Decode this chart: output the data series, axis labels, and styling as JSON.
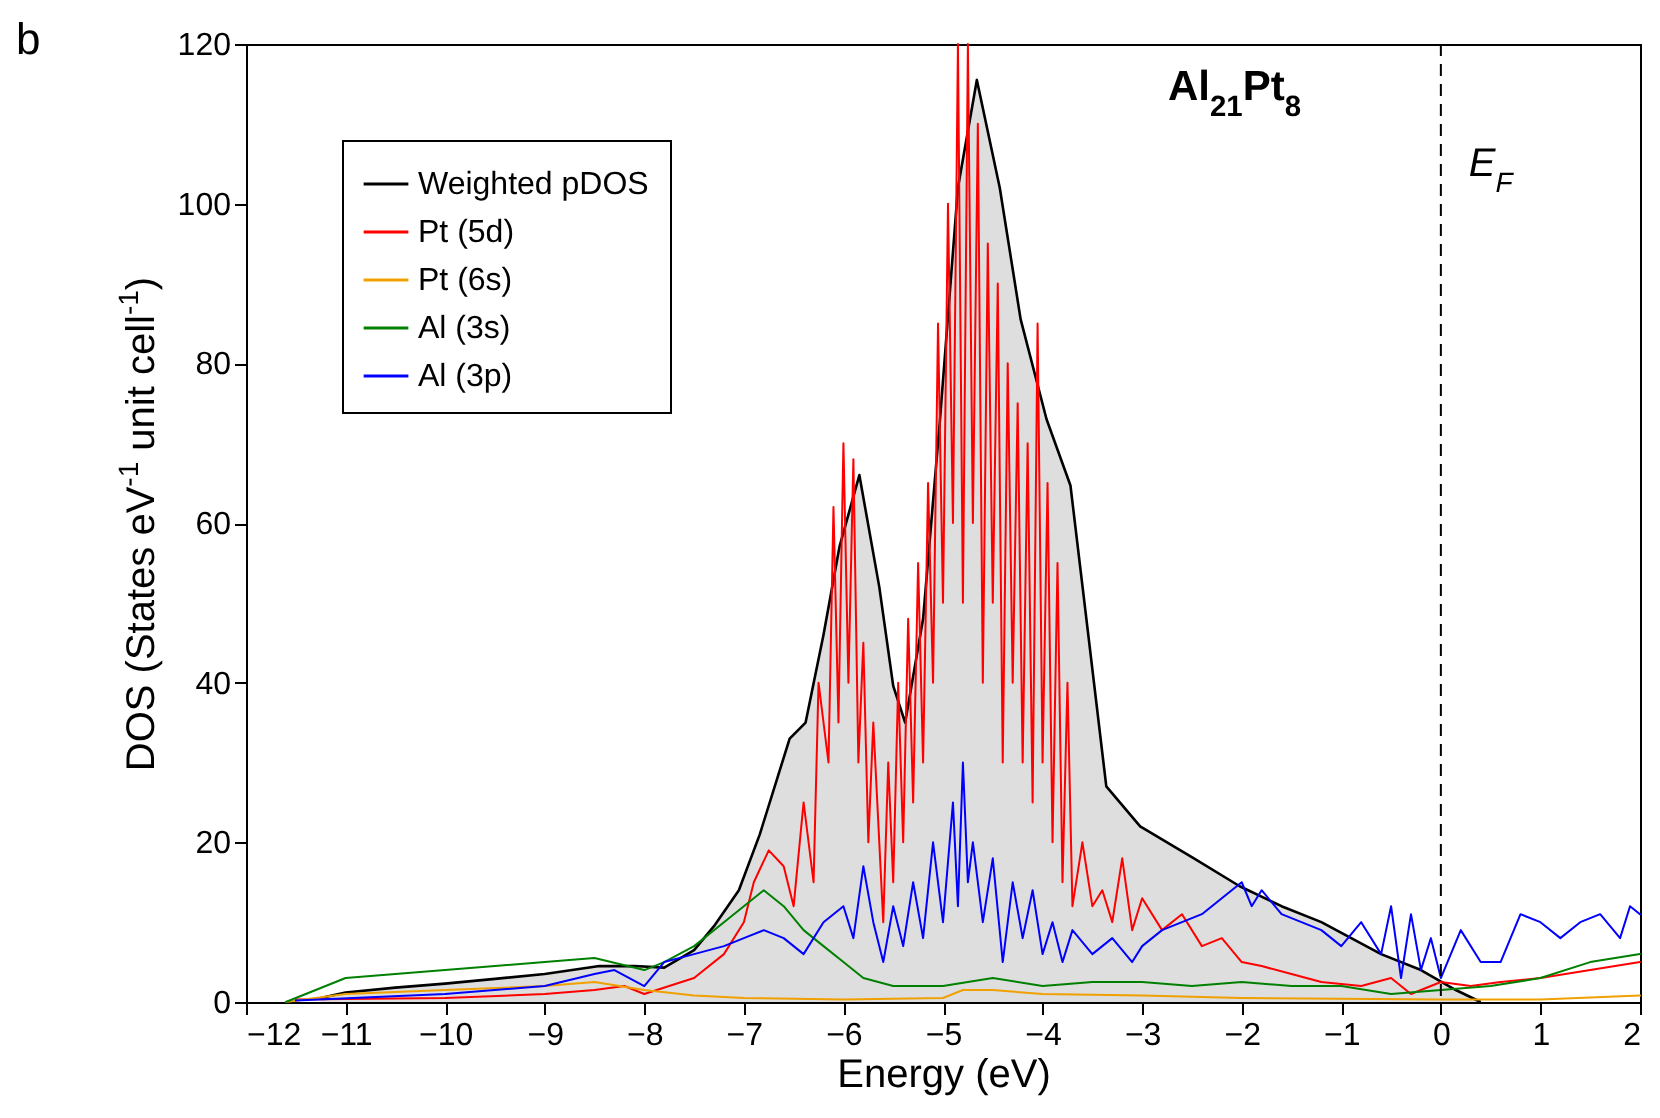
{
  "chart_data": {
    "type": "line",
    "title": "Al$_{21}$Pt$_{8}$",
    "xlabel": "Energy (eV)",
    "ylabel": "DOS (States eV$^{-1}$ unit cell$^{-1}$)",
    "annotations": [
      "b"
    ],
    "xlim": [
      -12,
      2
    ],
    "xticks": [
      -12,
      -11,
      -10,
      -9,
      -8,
      -7,
      -6,
      -5,
      -4,
      -3,
      -2,
      -1,
      0,
      1,
      2
    ],
    "ylim": [
      0,
      120
    ],
    "yticks": [
      0,
      20,
      40,
      60,
      80,
      100,
      120
    ],
    "grid": false,
    "legend": "top left",
    "marker": "none",
    "line_style": "solid",
    "ref_lines": [
      {
        "axis": "x",
        "value": 0,
        "label": "E$_{F}$",
        "line_style": "dashed",
        "color": "#000000"
      }
    ],
    "series": [
      {
        "name": "Weighted pDOS",
        "type": "area",
        "color": "#000000",
        "x": [
          -11.25,
          -11,
          -10.5,
          -10,
          -9.5,
          -9,
          -8.45,
          -8.1,
          -7.8,
          -7.5,
          -7.3,
          -7.05,
          -6.84,
          -6.54,
          -6.38,
          -6.2,
          -6.04,
          -5.84,
          -5.64,
          -5.5,
          -5.38,
          -5.2,
          -5.03,
          -4.85,
          -4.66,
          -4.43,
          -4.22,
          -3.96,
          -3.72,
          -3.56,
          -3.36,
          -3.02,
          -2.48,
          -2.02,
          -1.6,
          -1.2,
          -0.6,
          -0.2,
          0.15,
          0.4
        ],
        "values": [
          0.5,
          1.2,
          1.8,
          2.3,
          2.9,
          3.5,
          4.5,
          4.5,
          4.3,
          6.5,
          9.5,
          14,
          21,
          33,
          35,
          46,
          57,
          66,
          52,
          39.6,
          35,
          48,
          73,
          102,
          115.5,
          102,
          85.5,
          73,
          64.7,
          48,
          27,
          22,
          18,
          14.5,
          12,
          10,
          6,
          4,
          1.5,
          0
        ]
      },
      {
        "name": "Pt (5d)",
        "color": "#ff0000",
        "x": [
          -11.5,
          -10,
          -9,
          -8.5,
          -8.2,
          -8,
          -7.5,
          -7.2,
          -7,
          -6.9,
          -6.75,
          -6.6,
          -6.5,
          -6.4,
          -6.3,
          -6.25,
          -6.15,
          -6.1,
          -6.05,
          -6,
          -5.95,
          -5.9,
          -5.85,
          -5.8,
          -5.75,
          -5.7,
          -5.6,
          -5.55,
          -5.5,
          -5.45,
          -5.4,
          -5.35,
          -5.3,
          -5.25,
          -5.2,
          -5.15,
          -5.1,
          -5.05,
          -5,
          -4.95,
          -4.9,
          -4.85,
          -4.8,
          -4.75,
          -4.7,
          -4.65,
          -4.6,
          -4.55,
          -4.5,
          -4.45,
          -4.4,
          -4.35,
          -4.3,
          -4.25,
          -4.2,
          -4.15,
          -4.1,
          -4.05,
          -4,
          -3.95,
          -3.9,
          -3.85,
          -3.8,
          -3.75,
          -3.7,
          -3.6,
          -3.5,
          -3.4,
          -3.3,
          -3.2,
          -3.1,
          -3,
          -2.8,
          -2.6,
          -2.4,
          -2.2,
          -2,
          -1.8,
          -1.5,
          -1.2,
          -0.8,
          -0.5,
          -0.3,
          0,
          0.3,
          0.6,
          1,
          1.5,
          2
        ],
        "values": [
          0.3,
          0.5,
          1,
          1.5,
          2,
          1,
          3,
          6,
          10,
          15,
          19,
          17,
          12,
          25,
          15,
          40,
          30,
          62,
          35,
          70,
          40,
          68,
          30,
          45,
          20,
          35,
          10,
          30,
          15,
          40,
          20,
          48,
          25,
          55,
          30,
          65,
          40,
          85,
          50,
          100,
          60,
          120,
          50,
          120,
          60,
          110,
          40,
          95,
          50,
          90,
          30,
          80,
          40,
          75,
          30,
          70,
          25,
          85,
          30,
          65,
          20,
          55,
          15,
          40,
          12,
          20,
          12,
          14,
          10,
          18,
          9,
          13,
          9,
          11,
          7,
          8,
          5,
          4.5,
          3.5,
          2.5,
          2,
          3,
          1,
          2.5,
          2,
          2.5,
          3,
          4,
          5
        ]
      },
      {
        "name": "Pt (6s)",
        "color": "#f0a000",
        "x": [
          -11.6,
          -11,
          -10,
          -9,
          -8.5,
          -8,
          -7.5,
          -7,
          -6,
          -5,
          -4.8,
          -4.5,
          -4,
          -3,
          -2,
          0,
          1,
          2
        ],
        "values": [
          0,
          1,
          1.5,
          2,
          2.5,
          1.5,
          0.8,
          0.5,
          0.3,
          0.5,
          1.5,
          1.5,
          1,
          0.8,
          0.5,
          0.3,
          0.3,
          0.8
        ]
      },
      {
        "name": "Al (3s)",
        "color": "#008000",
        "x": [
          -11.6,
          -11,
          -10.5,
          -10,
          -9.5,
          -9,
          -8.5,
          -8,
          -7.8,
          -7.5,
          -7.2,
          -7,
          -6.8,
          -6.6,
          -6.4,
          -6.2,
          -6,
          -5.8,
          -5.5,
          -5,
          -4.5,
          -4,
          -3.5,
          -3,
          -2.5,
          -2,
          -1.5,
          -1,
          -0.5,
          0,
          0.5,
          1,
          1.5,
          2
        ],
        "values": [
          0,
          3,
          3.5,
          4,
          4.5,
          5,
          5.5,
          4,
          5,
          7,
          10,
          12,
          14,
          12,
          9,
          7,
          5,
          3,
          2,
          2,
          3,
          2,
          2.5,
          2.5,
          2,
          2.5,
          2,
          2,
          1,
          1.5,
          2,
          3,
          5,
          6
        ]
      },
      {
        "name": "Al (3p)",
        "color": "#0000ff",
        "x": [
          -11.5,
          -10,
          -9,
          -8.5,
          -8.3,
          -8,
          -7.8,
          -7.5,
          -7.2,
          -7,
          -6.8,
          -6.6,
          -6.4,
          -6.2,
          -6,
          -5.9,
          -5.8,
          -5.7,
          -5.6,
          -5.5,
          -5.4,
          -5.3,
          -5.2,
          -5.1,
          -5,
          -4.9,
          -4.85,
          -4.8,
          -4.75,
          -4.7,
          -4.6,
          -4.5,
          -4.4,
          -4.3,
          -4.2,
          -4.1,
          -4,
          -3.9,
          -3.8,
          -3.7,
          -3.5,
          -3.3,
          -3.1,
          -3,
          -2.8,
          -2.6,
          -2.4,
          -2.2,
          -2,
          -1.9,
          -1.8,
          -1.6,
          -1.4,
          -1.2,
          -1,
          -0.8,
          -0.6,
          -0.5,
          -0.4,
          -0.3,
          -0.2,
          -0.1,
          0,
          0.2,
          0.4,
          0.6,
          0.8,
          1,
          1.2,
          1.4,
          1.6,
          1.8,
          1.9,
          2
        ],
        "values": [
          0.2,
          1,
          2,
          3.5,
          4,
          2,
          5,
          6,
          7,
          8,
          9,
          8,
          6,
          10,
          12,
          8,
          17,
          10,
          5,
          12,
          7,
          15,
          8,
          20,
          10,
          25,
          12,
          30,
          15,
          20,
          10,
          18,
          5,
          15,
          8,
          14,
          6,
          10,
          5,
          9,
          6,
          8,
          5,
          7,
          9,
          10,
          11,
          13,
          15,
          12,
          14,
          11,
          10,
          9,
          7,
          10,
          6,
          12,
          3,
          11,
          4,
          8,
          3,
          9,
          5,
          5,
          11,
          10,
          8,
          10,
          11,
          8,
          12,
          11
        ]
      }
    ]
  }
}
